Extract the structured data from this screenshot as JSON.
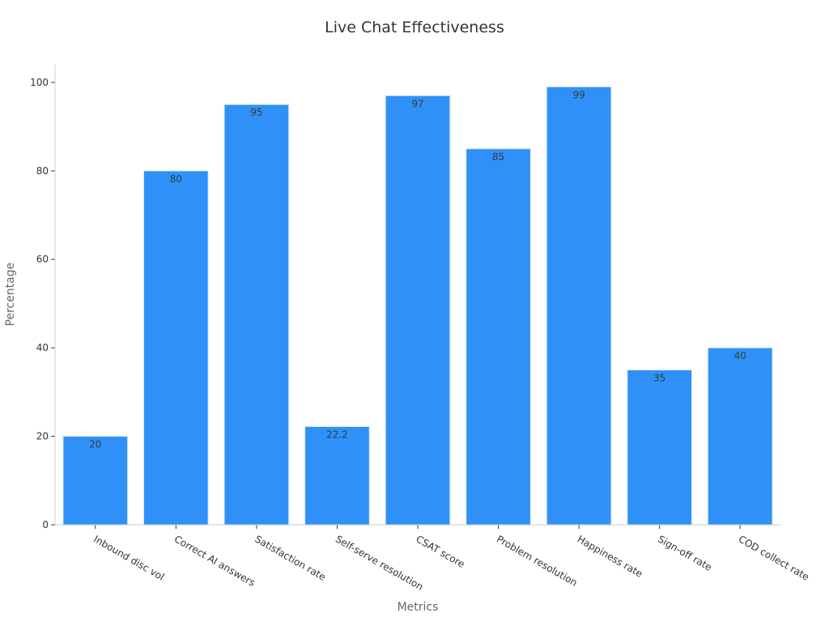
{
  "chart_data": {
    "type": "bar",
    "title": "Live Chat Effectiveness",
    "xlabel": "Metrics",
    "ylabel": "Percentage",
    "categories": [
      "Inbound disc vol",
      "Correct AI answers",
      "Satisfaction rate",
      "Self-serve resolution",
      "CSAT score",
      "Problem resolution",
      "Happiness rate",
      "Sign-off rate",
      "COD collect rate"
    ],
    "values": [
      20,
      80,
      95,
      22.2,
      97,
      85,
      99,
      35,
      40
    ],
    "ylim": [
      0,
      104
    ],
    "yticks": [
      0,
      20,
      40,
      60,
      80,
      100
    ],
    "grid": false,
    "bar_color": "#2f91f7"
  }
}
